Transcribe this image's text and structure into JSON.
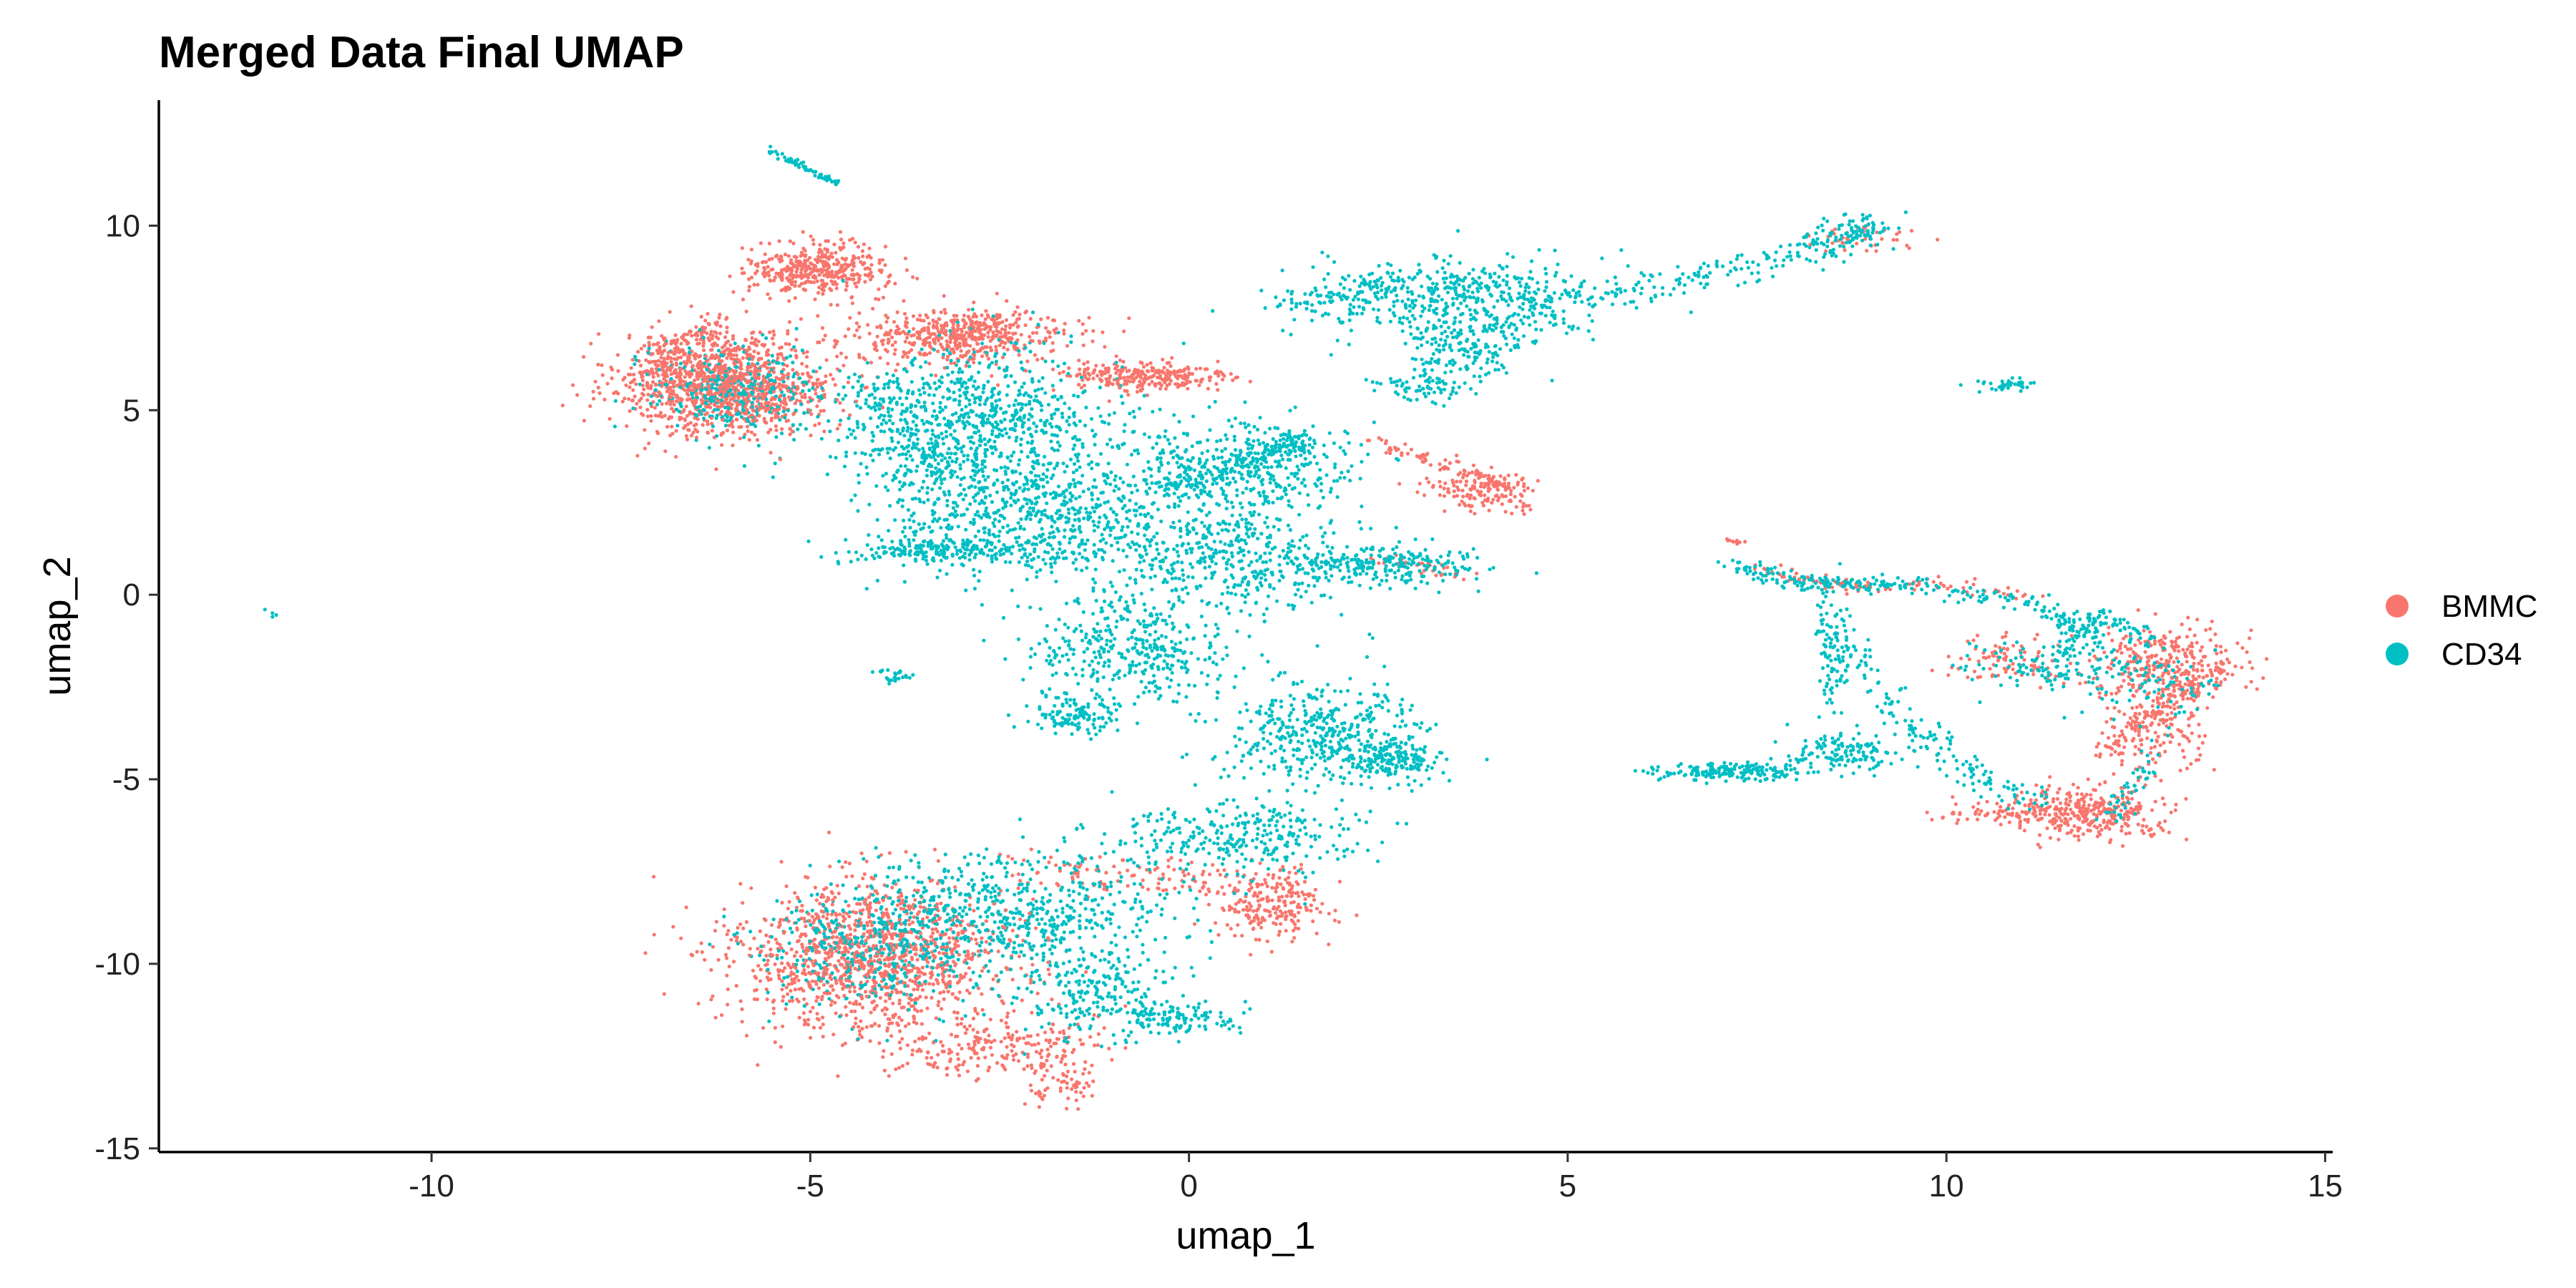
{
  "chart_data": {
    "type": "scatter",
    "title": "Merged Data Final UMAP",
    "xlabel": "umap_1",
    "ylabel": "umap_2",
    "xlim": [
      -13.6,
      15.1
    ],
    "ylim": [
      -15.1,
      13.4
    ],
    "xticks": [
      -10,
      -5,
      0,
      5,
      10,
      15
    ],
    "yticks": [
      -15,
      -10,
      -5,
      0,
      5,
      10
    ],
    "xtick_labels": [
      "-10",
      "-5",
      "0",
      "5",
      "10",
      "15"
    ],
    "ytick_labels": [
      "-15",
      "-10",
      "-5",
      "0",
      "5",
      "10"
    ],
    "grid": false,
    "legend_position": "right",
    "series": [
      {
        "name": "BMMC",
        "color": "#F8766D",
        "clusters": [
          {
            "cx": -6.1,
            "cy": 5.7,
            "sx": 0.7,
            "sy": 0.7,
            "n": 950
          },
          {
            "cx": -4.9,
            "cy": 8.8,
            "sx": 0.45,
            "sy": 0.35,
            "n": 320
          },
          {
            "cx": -3.0,
            "cy": 7.0,
            "sx": 0.7,
            "sy": 0.35,
            "n": 420
          },
          {
            "cx": -0.6,
            "cy": 5.9,
            "sx": 0.6,
            "sy": 0.22,
            "n": 220
          },
          {
            "cx": -4.2,
            "cy": -9.8,
            "sx": 0.9,
            "sy": 1.0,
            "n": 1000
          },
          {
            "cx": -2.6,
            "cy": -12.3,
            "sx": 0.7,
            "sy": 0.4,
            "n": 220
          },
          {
            "cx": -1.7,
            "cy": -13.2,
            "sx": 0.25,
            "sy": 0.3,
            "n": 60
          },
          {
            "cx": 1.1,
            "cy": -8.5,
            "sx": 0.35,
            "sy": 0.45,
            "n": 160
          },
          {
            "cx": 3.9,
            "cy": 2.8,
            "sx": 0.4,
            "sy": 0.25,
            "n": 140
          },
          {
            "cx": 12.9,
            "cy": -1.8,
            "sx": 0.5,
            "sy": 0.5,
            "n": 300
          },
          {
            "cx": 12.0,
            "cy": -5.9,
            "sx": 0.5,
            "sy": 0.35,
            "n": 280
          },
          {
            "cx": 11.0,
            "cy": -5.9,
            "sx": 0.6,
            "sy": 0.18,
            "n": 120
          },
          {
            "cx": 10.8,
            "cy": -1.8,
            "sx": 0.35,
            "sy": 0.3,
            "n": 80
          },
          {
            "cx": 8.8,
            "cy": 9.6,
            "sx": 0.35,
            "sy": 0.2,
            "n": 40
          },
          {
            "cx": 12.8,
            "cy": -3.6,
            "sx": 0.35,
            "sy": 0.6,
            "n": 120
          }
        ]
      },
      {
        "name": "CD34",
        "color": "#00BFC4",
        "clusters": [
          {
            "cx": -6.0,
            "cy": 5.5,
            "sx": 0.6,
            "sy": 0.6,
            "n": 300
          },
          {
            "cx": -3.0,
            "cy": 4.5,
            "sx": 0.9,
            "sy": 1.1,
            "n": 950
          },
          {
            "cx": -2.0,
            "cy": 2.0,
            "sx": 0.9,
            "sy": 0.8,
            "n": 600
          },
          {
            "cx": -3.3,
            "cy": 1.2,
            "sx": 0.6,
            "sy": 0.15,
            "n": 180
          },
          {
            "cx": 0.5,
            "cy": 3.5,
            "sx": 0.9,
            "sy": 0.7,
            "n": 420
          },
          {
            "cx": 0.5,
            "cy": 1.0,
            "sx": 0.8,
            "sy": 0.8,
            "n": 420
          },
          {
            "cx": 2.5,
            "cy": 0.8,
            "sx": 0.7,
            "sy": 0.3,
            "n": 260
          },
          {
            "cx": -0.8,
            "cy": -1.5,
            "sx": 0.7,
            "sy": 0.8,
            "n": 400
          },
          {
            "cx": -1.5,
            "cy": -3.3,
            "sx": 0.3,
            "sy": 0.25,
            "n": 120
          },
          {
            "cx": 1.8,
            "cy": -3.8,
            "sx": 0.7,
            "sy": 0.7,
            "n": 420
          },
          {
            "cx": 2.7,
            "cy": -4.5,
            "sx": 0.3,
            "sy": 0.3,
            "n": 160
          },
          {
            "cx": 0.6,
            "cy": -6.6,
            "sx": 0.8,
            "sy": 0.5,
            "n": 300
          },
          {
            "cx": -2.3,
            "cy": -8.5,
            "sx": 1.1,
            "sy": 0.8,
            "n": 550
          },
          {
            "cx": -1.4,
            "cy": -10.7,
            "sx": 0.6,
            "sy": 0.7,
            "n": 220
          },
          {
            "cx": -0.2,
            "cy": -11.5,
            "sx": 0.4,
            "sy": 0.2,
            "n": 130
          },
          {
            "cx": -4.1,
            "cy": -9.5,
            "sx": 0.8,
            "sy": 0.9,
            "n": 400
          },
          {
            "cx": 3.5,
            "cy": 7.9,
            "sx": 1.0,
            "sy": 0.6,
            "n": 420
          },
          {
            "cx": 3.6,
            "cy": 6.6,
            "sx": 0.35,
            "sy": 0.5,
            "n": 150
          },
          {
            "cx": 3.1,
            "cy": 5.6,
            "sx": 0.3,
            "sy": 0.2,
            "n": 60
          },
          {
            "cx": 10.8,
            "cy": 5.7,
            "sx": 0.2,
            "sy": 0.1,
            "n": 40
          },
          {
            "cx": -3.9,
            "cy": -2.2,
            "sx": 0.12,
            "sy": 0.1,
            "n": 25
          },
          {
            "cx": 7.2,
            "cy": -4.8,
            "sx": 0.5,
            "sy": 0.12,
            "n": 180
          },
          {
            "cx": 8.7,
            "cy": -4.3,
            "sx": 0.4,
            "sy": 0.25,
            "n": 140
          },
          {
            "cx": 8.5,
            "cy": -1.6,
            "sx": 0.12,
            "sy": 0.9,
            "n": 100
          },
          {
            "cx": 11.3,
            "cy": -1.9,
            "sx": 0.5,
            "sy": 0.3,
            "n": 100
          },
          {
            "cx": 12.4,
            "cy": -2.2,
            "sx": 0.4,
            "sy": 0.5,
            "n": 80
          }
        ],
        "curves": [
          {
            "pts": [
              [
                -5.5,
                12.0
              ],
              [
                -4.6,
                11.1
              ]
            ],
            "n": 60,
            "jitter": 0.04
          },
          {
            "pts": [
              [
                1.2,
                7.8
              ],
              [
                3.0,
                8.5
              ],
              [
                5.0,
                8.0
              ],
              [
                7.0,
                8.7
              ],
              [
                8.6,
                9.6
              ],
              [
                9.0,
                10.0
              ]
            ],
            "n": 420,
            "jitter": 0.22
          },
          {
            "pts": [
              [
                -0.5,
                2.8
              ],
              [
                0.8,
                3.5
              ],
              [
                1.5,
                4.3
              ]
            ],
            "n": 180,
            "jitter": 0.15
          },
          {
            "pts": [
              [
                7.2,
                0.7
              ],
              [
                8.2,
                0.3
              ],
              [
                9.5,
                0.3
              ],
              [
                11.2,
                -0.3
              ],
              [
                12.0,
                -1.2
              ]
            ],
            "n": 260,
            "jitter": 0.12
          },
          {
            "pts": [
              [
                8.6,
                -1.0
              ],
              [
                9.5,
                -3.5
              ],
              [
                10.4,
                -4.9
              ],
              [
                11.2,
                -5.6
              ]
            ],
            "n": 150,
            "jitter": 0.15
          },
          {
            "pts": [
              [
                11.5,
                -1.7
              ],
              [
                12.0,
                -0.5
              ],
              [
                12.7,
                -1.3
              ]
            ],
            "n": 90,
            "jitter": 0.1
          },
          {
            "pts": [
              [
                12.2,
                -6.0
              ],
              [
                12.6,
                -4.7
              ],
              [
                13.5,
                -2.2
              ]
            ],
            "n": 60,
            "jitter": 0.1
          }
        ]
      }
    ],
    "bmmc_curves": [
      {
        "pts": [
          [
            7.5,
            0.7
          ],
          [
            8.5,
            0.2
          ],
          [
            9.8,
            0.3
          ],
          [
            11.2,
            0.0
          ]
        ],
        "n": 90,
        "jitter": 0.1
      },
      {
        "pts": [
          [
            12.1,
            -4.3
          ],
          [
            12.8,
            -3.0
          ],
          [
            13.6,
            -2.0
          ]
        ],
        "n": 140,
        "jitter": 0.12
      },
      {
        "pts": [
          [
            -7.2,
            5.5
          ],
          [
            -6.9,
            6.8
          ],
          [
            -6.2,
            7.2
          ]
        ],
        "n": 120,
        "jitter": 0.15
      },
      {
        "pts": [
          [
            2.3,
            4.2
          ],
          [
            3.0,
            3.8
          ],
          [
            3.8,
            3.2
          ],
          [
            4.3,
            2.9
          ]
        ],
        "n": 90,
        "jitter": 0.12
      },
      {
        "pts": [
          [
            2.4,
            1.0
          ],
          [
            3.0,
            0.8
          ],
          [
            3.6,
            0.5
          ]
        ],
        "n": 40,
        "jitter": 0.08
      },
      {
        "pts": [
          [
            -2.0,
            -7.5
          ],
          [
            -0.5,
            -7.6
          ],
          [
            1.0,
            -7.9
          ],
          [
            1.4,
            -8.7
          ]
        ],
        "n": 180,
        "jitter": 0.3
      },
      {
        "pts": [
          [
            7.1,
            1.5
          ],
          [
            7.3,
            1.4
          ]
        ],
        "n": 10,
        "jitter": 0.04
      }
    ],
    "outliers": [
      {
        "x": -12.1,
        "y": -0.5,
        "series": "CD34"
      },
      {
        "x": -12.1,
        "y": -0.6,
        "series": "CD34"
      },
      {
        "x": -12.2,
        "y": -0.4,
        "series": "CD34"
      },
      {
        "x": -12.05,
        "y": -0.55,
        "series": "CD34"
      }
    ]
  }
}
